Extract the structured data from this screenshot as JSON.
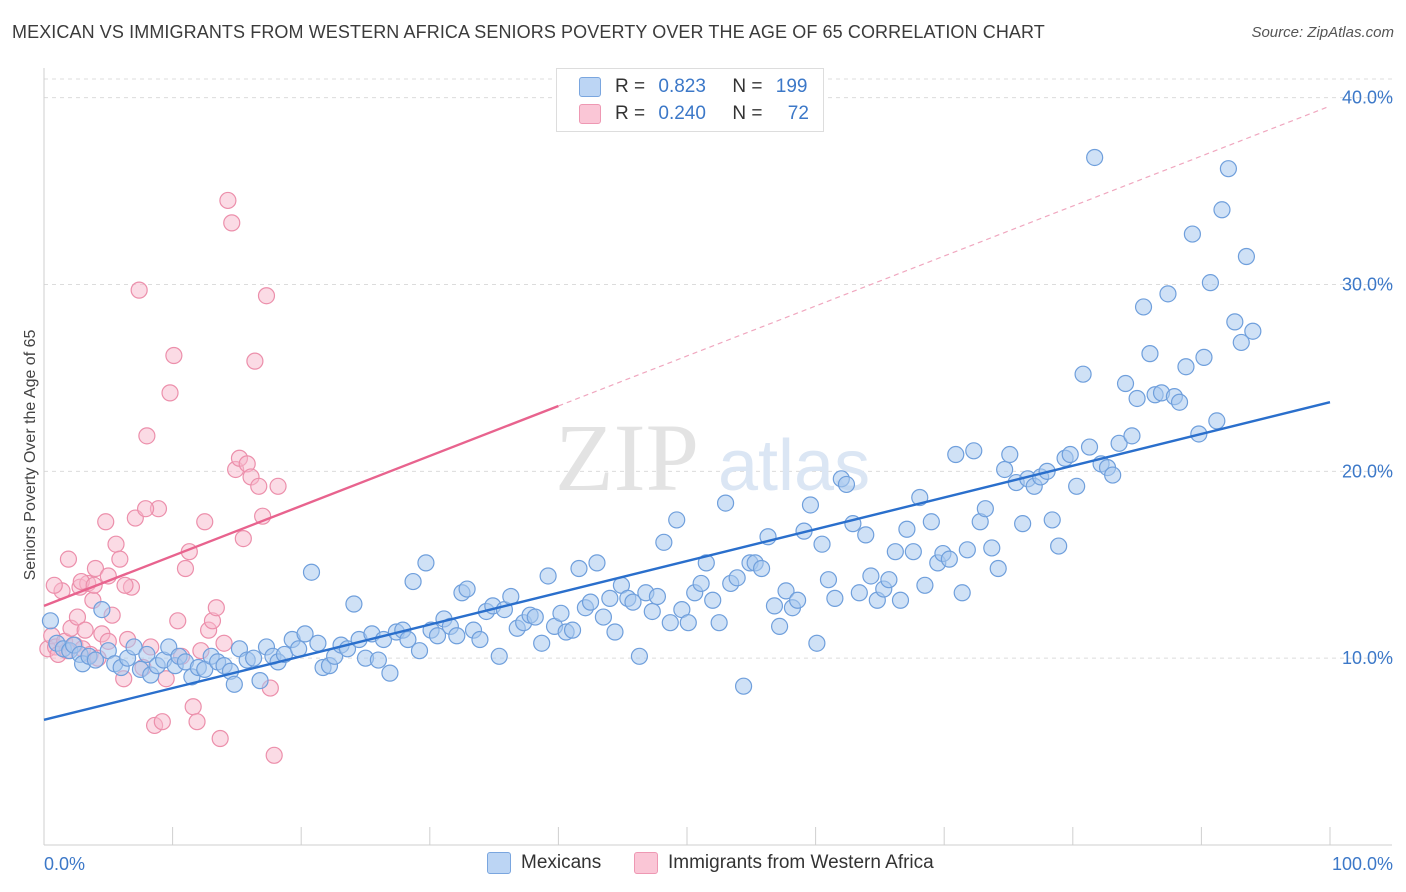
{
  "title": "MEXICAN VS IMMIGRANTS FROM WESTERN AFRICA SENIORS POVERTY OVER THE AGE OF 65 CORRELATION CHART",
  "source": "Source: ZipAtlas.com",
  "watermark": {
    "zip": "ZIP",
    "atlas": "atlas"
  },
  "legend": {
    "rows": [
      {
        "r_label": "R =",
        "r_value": "0.823",
        "n_label": "N =",
        "n_value": "199"
      },
      {
        "r_label": "R =",
        "r_value": "0.240",
        "n_label": "N =",
        "n_value": "72"
      }
    ]
  },
  "colors": {
    "blue_fill": "#a8c8ef",
    "blue_stroke": "#6f9fdc",
    "blue_line": "#2a6fcc",
    "pink_fill": "#f7b8cb",
    "pink_stroke": "#ec8fab",
    "pink_line": "#e8638e",
    "tick_text": "#3c78c8"
  },
  "chart_data": {
    "type": "scatter",
    "ylabel": "Seniors Poverty Over the Age of 65",
    "xlim": [
      0,
      100
    ],
    "ylim": [
      0,
      41
    ],
    "x_ticks": [
      "0.0%",
      "100.0%"
    ],
    "y_ticks": [
      {
        "value": 10,
        "label": "10.0%"
      },
      {
        "value": 20,
        "label": "20.0%"
      },
      {
        "value": 30,
        "label": "30.0%"
      },
      {
        "value": 40,
        "label": "40.0%"
      }
    ],
    "grid": "horizontal dashed",
    "legend_position": "top-center",
    "series": [
      {
        "name": "Mexicans",
        "color": "#a8c8ef",
        "trend": {
          "x": [
            0,
            100
          ],
          "y": [
            6.7,
            23.7
          ]
        },
        "points": [
          [
            0.5,
            12.0
          ],
          [
            1.0,
            10.8
          ],
          [
            1.5,
            10.5
          ],
          [
            2.0,
            10.4
          ],
          [
            2.3,
            10.7
          ],
          [
            2.8,
            10.2
          ],
          [
            3.0,
            9.7
          ],
          [
            3.5,
            10.1
          ],
          [
            4.0,
            9.9
          ],
          [
            4.5,
            12.6
          ],
          [
            5.0,
            10.4
          ],
          [
            5.5,
            9.7
          ],
          [
            6.0,
            9.5
          ],
          [
            6.5,
            10.0
          ],
          [
            7.0,
            10.6
          ],
          [
            7.5,
            9.4
          ],
          [
            8.0,
            10.2
          ],
          [
            8.3,
            9.1
          ],
          [
            8.8,
            9.6
          ],
          [
            9.3,
            9.9
          ],
          [
            9.7,
            10.6
          ],
          [
            10.2,
            9.6
          ],
          [
            10.5,
            10.1
          ],
          [
            11.0,
            9.8
          ],
          [
            11.5,
            9.0
          ],
          [
            12.0,
            9.5
          ],
          [
            12.5,
            9.4
          ],
          [
            13.0,
            10.1
          ],
          [
            13.5,
            9.8
          ],
          [
            14.0,
            9.6
          ],
          [
            14.5,
            9.3
          ],
          [
            14.8,
            8.6
          ],
          [
            15.2,
            10.5
          ],
          [
            15.8,
            9.9
          ],
          [
            16.3,
            10.0
          ],
          [
            16.8,
            8.8
          ],
          [
            17.3,
            10.6
          ],
          [
            17.8,
            10.1
          ],
          [
            18.2,
            9.8
          ],
          [
            18.7,
            10.2
          ],
          [
            19.3,
            11.0
          ],
          [
            19.8,
            10.5
          ],
          [
            20.3,
            11.3
          ],
          [
            20.8,
            14.6
          ],
          [
            21.3,
            10.8
          ],
          [
            21.7,
            9.5
          ],
          [
            22.2,
            9.6
          ],
          [
            22.6,
            10.1
          ],
          [
            23.1,
            10.7
          ],
          [
            23.6,
            10.5
          ],
          [
            24.1,
            12.9
          ],
          [
            24.5,
            11.0
          ],
          [
            25.0,
            10.0
          ],
          [
            25.5,
            11.3
          ],
          [
            26.0,
            9.9
          ],
          [
            26.4,
            11.0
          ],
          [
            26.9,
            9.2
          ],
          [
            27.4,
            11.4
          ],
          [
            27.9,
            11.5
          ],
          [
            28.3,
            11.0
          ],
          [
            28.7,
            14.1
          ],
          [
            29.2,
            10.4
          ],
          [
            29.7,
            15.1
          ],
          [
            30.1,
            11.5
          ],
          [
            30.6,
            11.2
          ],
          [
            31.1,
            12.1
          ],
          [
            31.6,
            11.7
          ],
          [
            32.1,
            11.2
          ],
          [
            32.5,
            13.5
          ],
          [
            32.9,
            13.7
          ],
          [
            33.4,
            11.5
          ],
          [
            33.9,
            11.0
          ],
          [
            34.4,
            12.5
          ],
          [
            34.9,
            12.8
          ],
          [
            35.4,
            10.1
          ],
          [
            35.8,
            12.6
          ],
          [
            36.3,
            13.3
          ],
          [
            36.8,
            11.6
          ],
          [
            37.3,
            11.9
          ],
          [
            37.8,
            12.3
          ],
          [
            38.2,
            12.2
          ],
          [
            38.7,
            10.8
          ],
          [
            39.2,
            14.4
          ],
          [
            39.7,
            11.7
          ],
          [
            40.2,
            12.4
          ],
          [
            40.6,
            11.4
          ],
          [
            41.1,
            11.5
          ],
          [
            41.6,
            14.8
          ],
          [
            42.1,
            12.7
          ],
          [
            42.5,
            13.0
          ],
          [
            43.0,
            15.1
          ],
          [
            43.5,
            12.2
          ],
          [
            44.0,
            13.2
          ],
          [
            44.4,
            11.4
          ],
          [
            44.9,
            13.9
          ],
          [
            45.4,
            13.2
          ],
          [
            45.8,
            13.0
          ],
          [
            46.3,
            10.1
          ],
          [
            46.8,
            13.5
          ],
          [
            47.3,
            12.5
          ],
          [
            47.7,
            13.3
          ],
          [
            48.2,
            16.2
          ],
          [
            48.7,
            11.9
          ],
          [
            49.2,
            17.4
          ],
          [
            49.6,
            12.6
          ],
          [
            50.1,
            11.9
          ],
          [
            50.6,
            13.5
          ],
          [
            51.1,
            14.0
          ],
          [
            51.5,
            15.1
          ],
          [
            52.0,
            13.1
          ],
          [
            52.5,
            11.9
          ],
          [
            53.0,
            18.3
          ],
          [
            53.4,
            14.0
          ],
          [
            53.9,
            14.3
          ],
          [
            54.4,
            8.5
          ],
          [
            54.9,
            15.1
          ],
          [
            55.3,
            15.1
          ],
          [
            55.8,
            14.8
          ],
          [
            56.3,
            16.5
          ],
          [
            56.8,
            12.8
          ],
          [
            57.2,
            11.7
          ],
          [
            57.7,
            13.6
          ],
          [
            58.2,
            12.7
          ],
          [
            58.6,
            13.1
          ],
          [
            59.1,
            16.8
          ],
          [
            59.6,
            18.2
          ],
          [
            60.1,
            10.8
          ],
          [
            60.5,
            16.1
          ],
          [
            61.0,
            14.2
          ],
          [
            61.5,
            13.2
          ],
          [
            62.0,
            19.6
          ],
          [
            62.4,
            19.3
          ],
          [
            62.9,
            17.2
          ],
          [
            63.4,
            13.5
          ],
          [
            63.9,
            16.6
          ],
          [
            64.3,
            14.4
          ],
          [
            64.8,
            13.1
          ],
          [
            65.3,
            13.7
          ],
          [
            65.7,
            14.2
          ],
          [
            66.2,
            15.7
          ],
          [
            66.6,
            13.1
          ],
          [
            67.1,
            16.9
          ],
          [
            67.6,
            15.7
          ],
          [
            68.1,
            18.6
          ],
          [
            68.5,
            13.9
          ],
          [
            69.0,
            17.3
          ],
          [
            69.5,
            15.1
          ],
          [
            69.9,
            15.6
          ],
          [
            70.4,
            15.3
          ],
          [
            70.9,
            20.9
          ],
          [
            71.4,
            13.5
          ],
          [
            71.8,
            15.8
          ],
          [
            72.3,
            21.1
          ],
          [
            72.8,
            17.3
          ],
          [
            73.2,
            18.0
          ],
          [
            73.7,
            15.9
          ],
          [
            74.2,
            14.8
          ],
          [
            74.7,
            20.1
          ],
          [
            75.1,
            20.9
          ],
          [
            75.6,
            19.4
          ],
          [
            76.1,
            17.2
          ],
          [
            76.5,
            19.6
          ],
          [
            77.0,
            19.2
          ],
          [
            77.5,
            19.7
          ],
          [
            78.0,
            20.0
          ],
          [
            78.4,
            17.4
          ],
          [
            78.9,
            16.0
          ],
          [
            79.4,
            20.7
          ],
          [
            79.8,
            20.9
          ],
          [
            80.3,
            19.2
          ],
          [
            80.8,
            25.2
          ],
          [
            81.3,
            21.3
          ],
          [
            81.7,
            36.8
          ],
          [
            82.2,
            20.4
          ],
          [
            82.7,
            20.2
          ],
          [
            83.1,
            19.8
          ],
          [
            83.6,
            21.5
          ],
          [
            84.1,
            24.7
          ],
          [
            84.6,
            21.9
          ],
          [
            85.0,
            23.9
          ],
          [
            85.5,
            28.8
          ],
          [
            86.0,
            26.3
          ],
          [
            86.4,
            24.1
          ],
          [
            86.9,
            24.2
          ],
          [
            87.4,
            29.5
          ],
          [
            87.9,
            24.0
          ],
          [
            88.3,
            23.7
          ],
          [
            88.8,
            25.6
          ],
          [
            89.3,
            32.7
          ],
          [
            89.8,
            22.0
          ],
          [
            90.2,
            26.1
          ],
          [
            90.7,
            30.1
          ],
          [
            91.2,
            22.7
          ],
          [
            91.6,
            34.0
          ],
          [
            92.1,
            36.2
          ],
          [
            92.6,
            28.0
          ],
          [
            93.1,
            26.9
          ],
          [
            93.5,
            31.5
          ],
          [
            94.0,
            27.5
          ]
        ]
      },
      {
        "name": "Immigrants from Western Africa",
        "color": "#f7b8cb",
        "trend": {
          "x": [
            0,
            40
          ],
          "y": [
            12.8,
            23.5
          ]
        },
        "points": [
          [
            0.3,
            10.5
          ],
          [
            0.6,
            11.2
          ],
          [
            0.9,
            10.6
          ],
          [
            1.1,
            10.2
          ],
          [
            1.4,
            13.6
          ],
          [
            1.6,
            10.9
          ],
          [
            1.9,
            15.3
          ],
          [
            2.1,
            11.6
          ],
          [
            2.4,
            10.7
          ],
          [
            2.6,
            12.2
          ],
          [
            2.8,
            13.8
          ],
          [
            3.0,
            10.5
          ],
          [
            3.2,
            11.5
          ],
          [
            3.4,
            14.0
          ],
          [
            3.6,
            10.2
          ],
          [
            3.8,
            13.1
          ],
          [
            4.0,
            14.8
          ],
          [
            4.2,
            10.0
          ],
          [
            4.5,
            11.3
          ],
          [
            4.8,
            17.3
          ],
          [
            5.0,
            14.4
          ],
          [
            5.3,
            12.3
          ],
          [
            5.6,
            16.1
          ],
          [
            5.9,
            15.3
          ],
          [
            6.2,
            8.9
          ],
          [
            6.5,
            11.0
          ],
          [
            6.8,
            13.8
          ],
          [
            7.1,
            17.5
          ],
          [
            7.4,
            29.7
          ],
          [
            7.7,
            9.5
          ],
          [
            8.0,
            21.9
          ],
          [
            8.3,
            10.6
          ],
          [
            8.6,
            6.4
          ],
          [
            8.9,
            18.0
          ],
          [
            9.2,
            6.6
          ],
          [
            9.5,
            8.9
          ],
          [
            9.8,
            24.2
          ],
          [
            10.1,
            26.2
          ],
          [
            10.4,
            12.0
          ],
          [
            10.7,
            10.1
          ],
          [
            11.0,
            14.8
          ],
          [
            11.3,
            15.7
          ],
          [
            11.6,
            7.4
          ],
          [
            11.9,
            6.6
          ],
          [
            12.2,
            10.4
          ],
          [
            12.5,
            17.3
          ],
          [
            12.8,
            11.5
          ],
          [
            13.1,
            12.0
          ],
          [
            13.4,
            12.7
          ],
          [
            13.7,
            5.7
          ],
          [
            14.0,
            10.8
          ],
          [
            14.3,
            34.5
          ],
          [
            14.6,
            33.3
          ],
          [
            14.9,
            20.1
          ],
          [
            15.2,
            20.7
          ],
          [
            15.5,
            16.4
          ],
          [
            15.8,
            20.4
          ],
          [
            16.1,
            19.7
          ],
          [
            16.4,
            25.9
          ],
          [
            16.7,
            19.2
          ],
          [
            17.0,
            17.6
          ],
          [
            17.3,
            29.4
          ],
          [
            17.6,
            8.4
          ],
          [
            17.9,
            4.8
          ],
          [
            18.2,
            19.2
          ],
          [
            0.8,
            13.9
          ],
          [
            1.8,
            10.4
          ],
          [
            2.9,
            14.1
          ],
          [
            3.9,
            13.9
          ],
          [
            5.0,
            10.9
          ],
          [
            6.3,
            13.9
          ],
          [
            7.9,
            18.0
          ]
        ]
      }
    ]
  },
  "bottom_legend": [
    {
      "label": "Mexicans"
    },
    {
      "label": "Immigrants from Western Africa"
    }
  ]
}
